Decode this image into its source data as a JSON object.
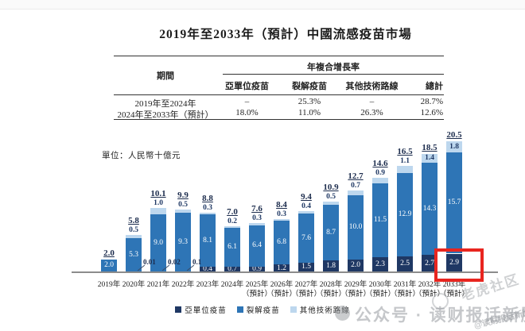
{
  "title": "2019年至2033年（預計）中國流感疫苗市場",
  "unit_label": "單位：人民幣十億元",
  "colors": {
    "subunit": "#1F3864",
    "split": "#2E75B6",
    "other": "#BDD7EE",
    "highlight_red": "#E8251F",
    "total_label": "#1c2c4d"
  },
  "table": {
    "period_header": "期間",
    "cagr_header": "年複合增長率",
    "columns": [
      "亞單位疫苗",
      "裂解疫苗",
      "其他技術路線",
      "總計"
    ],
    "rows": [
      {
        "period": "2019年至2024年",
        "values": [
          "–",
          "25.3%",
          "–",
          "28.7%"
        ]
      },
      {
        "period": "2024年至2033年（預計）",
        "values": [
          "18.0%",
          "11.0%",
          "26.3%",
          "12.6%"
        ]
      }
    ]
  },
  "chart_data": {
    "type": "bar",
    "stacked": true,
    "grid": false,
    "unit": "人民幣十億元",
    "ylim": [
      0,
      22
    ],
    "legend_position": "bottom",
    "series_order_bottom_to_top": [
      "亞單位疫苗",
      "裂解疫苗",
      "其他技術路線"
    ],
    "legend": [
      "亞單位疫苗",
      "裂解疫苗",
      "其他技術路線"
    ],
    "forecast_suffix": "（預計）",
    "bars": [
      {
        "category": "2019年",
        "forecast": false,
        "subunit": null,
        "split": "2.0",
        "other": null,
        "total": "2.0",
        "subunit_as_callout": false,
        "highlighted": false
      },
      {
        "category": "2020年",
        "forecast": false,
        "subunit": "0.01",
        "split": "5.3",
        "other": "0.5",
        "total": "5.8",
        "subunit_as_callout": true,
        "highlighted": false
      },
      {
        "category": "2021年",
        "forecast": false,
        "subunit": "0.02",
        "split": "9.0",
        "other": "1.0",
        "total": "10.1",
        "subunit_as_callout": true,
        "highlighted": false
      },
      {
        "category": "2022年",
        "forecast": false,
        "subunit": "0.1",
        "split": "9.3",
        "other": "0.5",
        "total": "9.9",
        "subunit_as_callout": true,
        "highlighted": false
      },
      {
        "category": "2023年",
        "forecast": false,
        "subunit": "0.4",
        "split": "8.1",
        "other": "0.3",
        "total": "8.8",
        "subunit_as_callout": false,
        "highlighted": false
      },
      {
        "category": "2024年",
        "forecast": false,
        "subunit": "0.7",
        "split": "6.1",
        "other": "0.2",
        "total": "7.0",
        "subunit_as_callout": false,
        "highlighted": false
      },
      {
        "category": "2025年",
        "forecast": true,
        "subunit": "0.9",
        "split": "6.4",
        "other": "0.3",
        "total": "7.6",
        "subunit_as_callout": false,
        "highlighted": false
      },
      {
        "category": "2026年",
        "forecast": true,
        "subunit": "1.2",
        "split": "6.8",
        "other": "0.3",
        "total": "8.4",
        "subunit_as_callout": false,
        "highlighted": false
      },
      {
        "category": "2027年",
        "forecast": true,
        "subunit": "1.5",
        "split": "7.6",
        "other": "0.4",
        "total": "9.4",
        "subunit_as_callout": false,
        "highlighted": false
      },
      {
        "category": "2028年",
        "forecast": true,
        "subunit": "1.8",
        "split": "8.7",
        "other": "0.5",
        "total": "10.9",
        "subunit_as_callout": false,
        "highlighted": false
      },
      {
        "category": "2029年",
        "forecast": true,
        "subunit": "2.0",
        "split": "10.0",
        "other": "0.7",
        "total": "12.7",
        "subunit_as_callout": false,
        "highlighted": false
      },
      {
        "category": "2030年",
        "forecast": true,
        "subunit": "2.3",
        "split": "11.5",
        "other": "0.9",
        "total": "14.6",
        "subunit_as_callout": false,
        "highlighted": false
      },
      {
        "category": "2031年",
        "forecast": true,
        "subunit": "2.5",
        "split": "12.9",
        "other": "1.1",
        "total": "16.5",
        "subunit_as_callout": false,
        "highlighted": false
      },
      {
        "category": "2032年",
        "forecast": true,
        "subunit": "2.7",
        "split": "14.3",
        "other": "1.4",
        "total": "18.5",
        "subunit_as_callout": false,
        "highlighted": false
      },
      {
        "category": "2033年",
        "forecast": true,
        "subunit": "2.9",
        "split": "15.7",
        "other": "1.8",
        "total": "20.5",
        "subunit_as_callout": false,
        "highlighted": true
      }
    ]
  },
  "annotation": {
    "shape": "red-rectangle",
    "target": "2033年 亞單位疫苗 2.9"
  },
  "watermarks": {
    "main": "公众号 · 读财报话新股",
    "community": "老虎社区",
    "handle": "@读财报话新股"
  }
}
